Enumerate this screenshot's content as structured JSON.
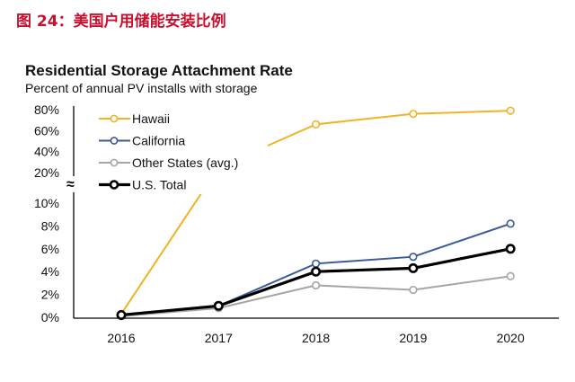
{
  "figure_title": "图 24：美国户用储能安装比例",
  "chart_data": {
    "type": "line",
    "title": "Residential Storage Attachment Rate",
    "subtitle": "Percent of annual PV installs with storage",
    "x": [
      "2016",
      "2017",
      "2018",
      "2019",
      "2020"
    ],
    "y_axis": {
      "broken": true,
      "break_symbol": "≈",
      "lower_ticks": [
        "0%",
        "2%",
        "4%",
        "6%",
        "8%",
        "10%"
      ],
      "upper_ticks": [
        "20%",
        "40%",
        "60%",
        "80%"
      ],
      "lower_range": [
        0,
        10
      ],
      "upper_range": [
        20,
        80
      ]
    },
    "grid": false,
    "legend_position": "top-left",
    "series": [
      {
        "name": "Hawaii",
        "color": "#f0b323",
        "values": [
          0.3,
          25,
          66,
          76,
          79
        ]
      },
      {
        "name": "California",
        "color": "#3a5a9a",
        "values": [
          0.2,
          1.0,
          4.7,
          5.3,
          8.2
        ]
      },
      {
        "name": "Other States (avg.)",
        "color": "#a6a6a6",
        "values": [
          0.1,
          0.8,
          2.8,
          2.4,
          3.6
        ]
      },
      {
        "name": "U.S. Total",
        "color": "#000000",
        "values": [
          0.2,
          1.0,
          4.0,
          4.3,
          6.0
        ]
      }
    ]
  }
}
